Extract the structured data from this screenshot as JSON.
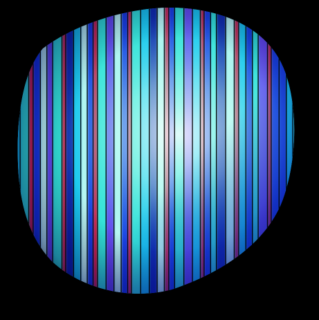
{
  "photo": {
    "subject": "striped-glowing-disc",
    "colors": {
      "background": "#000000",
      "cyan": "#33e6d6",
      "pale_cyan": "#c8fbf4",
      "blue": "#1432e6",
      "deep_blue": "#0a1ea8",
      "red": "#e0143c",
      "violet": "#6a3cf0",
      "aqua": "#19c8f0"
    }
  }
}
